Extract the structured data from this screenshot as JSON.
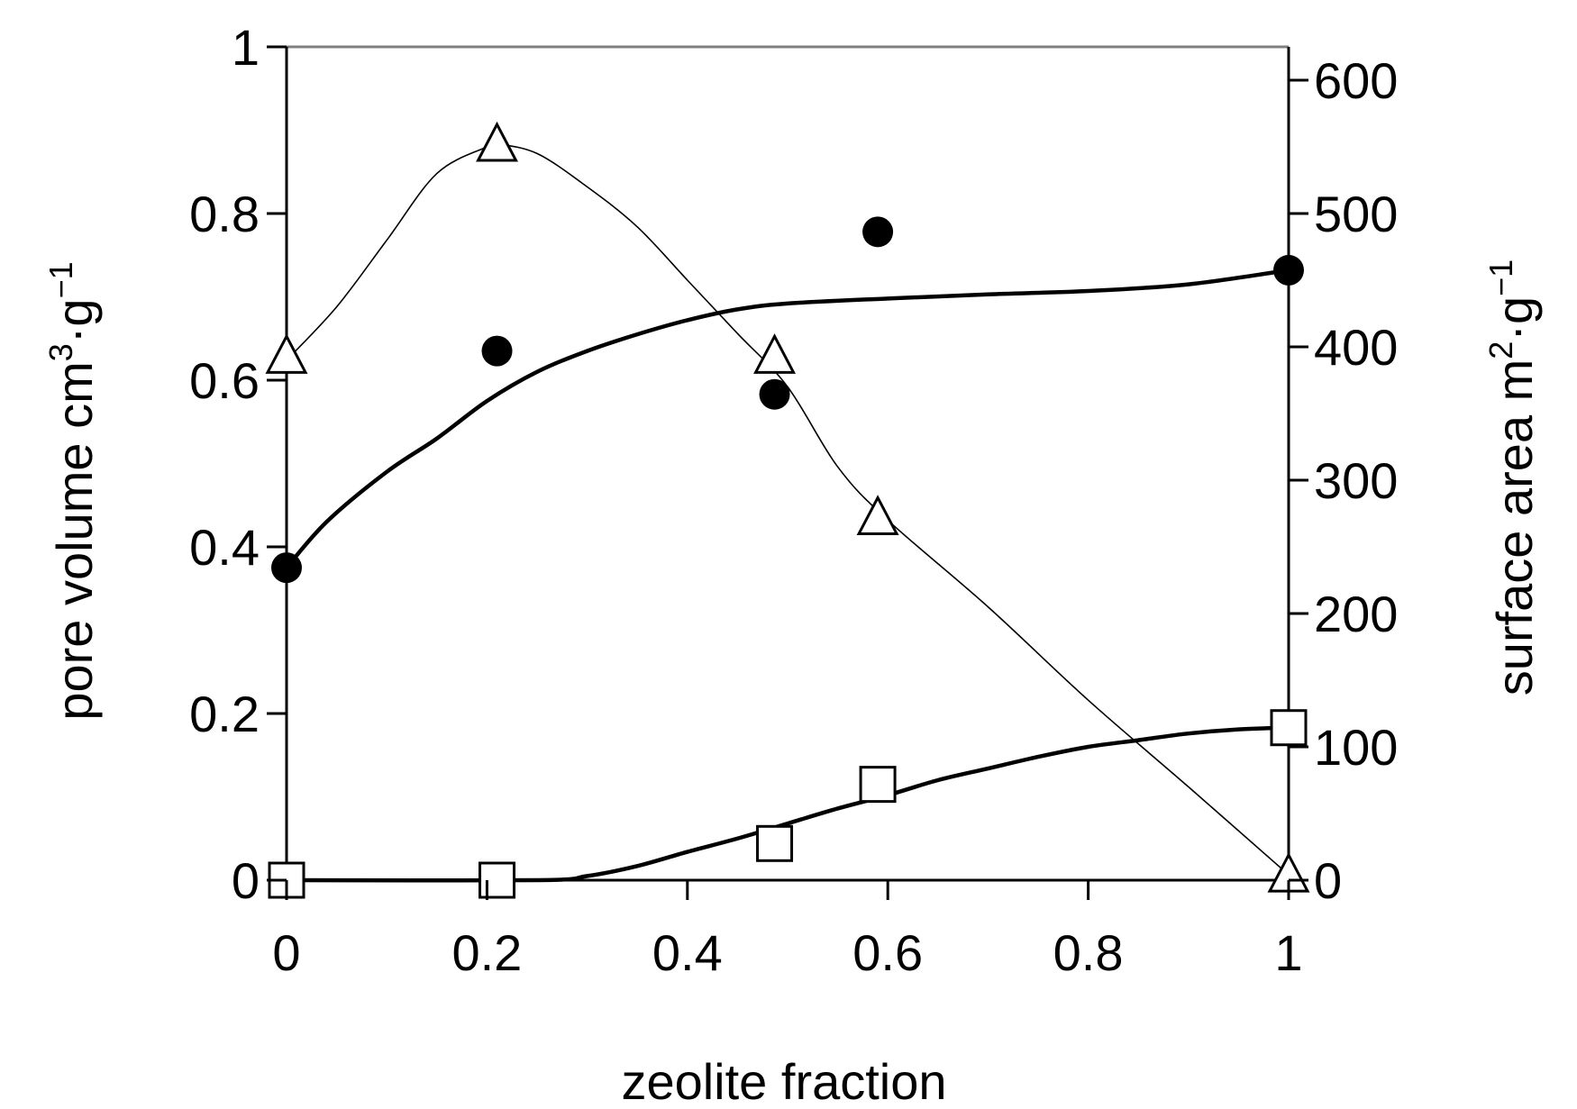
{
  "chart_data": {
    "type": "scatter",
    "xlabel": "zeolite fraction",
    "ylabel": {
      "text": "pore volume cm",
      "sup1": "3",
      "mid": "·g",
      "sup2": "−1"
    },
    "y2label": {
      "text": "surface area m",
      "sup1": "2",
      "mid": "·g",
      "sup2": "−1"
    },
    "xlim": [
      0,
      1
    ],
    "ylim": [
      0,
      1
    ],
    "y2lim": [
      0,
      625
    ],
    "xticks": [
      "0",
      "0.2",
      "0.4",
      "0.6",
      "0.8",
      "1"
    ],
    "yticks": [
      "0",
      "0.2",
      "0.4",
      "0.6",
      "0.8",
      "1"
    ],
    "y2ticks": [
      "0",
      "100",
      "200",
      "300",
      "400",
      "500",
      "600"
    ],
    "grid": false,
    "series": [
      {
        "marker": "filled-circle",
        "axis": "left",
        "points": [
          [
            0.0,
            0.375
          ],
          [
            0.21,
            0.635
          ],
          [
            0.487,
            0.583
          ],
          [
            0.59,
            0.778
          ],
          [
            1.0,
            0.732
          ]
        ],
        "fit": [
          [
            0.0,
            0.375
          ],
          [
            0.04,
            0.43
          ],
          [
            0.1,
            0.49
          ],
          [
            0.15,
            0.53
          ],
          [
            0.2,
            0.575
          ],
          [
            0.25,
            0.61
          ],
          [
            0.3,
            0.635
          ],
          [
            0.35,
            0.655
          ],
          [
            0.4,
            0.672
          ],
          [
            0.45,
            0.685
          ],
          [
            0.5,
            0.692
          ],
          [
            0.6,
            0.698
          ],
          [
            0.7,
            0.703
          ],
          [
            0.8,
            0.707
          ],
          [
            0.9,
            0.715
          ],
          [
            1.0,
            0.732
          ]
        ],
        "fit_weight": "bold"
      },
      {
        "marker": "open-square",
        "axis": "left",
        "points": [
          [
            0.0,
            0.0
          ],
          [
            0.21,
            0.0
          ],
          [
            0.487,
            0.044
          ],
          [
            0.59,
            0.115
          ],
          [
            1.0,
            0.183
          ]
        ],
        "fit": [
          [
            0.0,
            0.0
          ],
          [
            0.25,
            0.0
          ],
          [
            0.3,
            0.005
          ],
          [
            0.35,
            0.017
          ],
          [
            0.4,
            0.034
          ],
          [
            0.45,
            0.05
          ],
          [
            0.5,
            0.068
          ],
          [
            0.55,
            0.086
          ],
          [
            0.6,
            0.102
          ],
          [
            0.65,
            0.12
          ],
          [
            0.7,
            0.134
          ],
          [
            0.75,
            0.148
          ],
          [
            0.8,
            0.16
          ],
          [
            0.85,
            0.168
          ],
          [
            0.9,
            0.176
          ],
          [
            0.95,
            0.181
          ],
          [
            1.0,
            0.183
          ]
        ],
        "fit_weight": "bold"
      },
      {
        "marker": "open-triangle",
        "axis": "right",
        "points": [
          [
            0.0,
            393
          ],
          [
            0.21,
            552
          ],
          [
            0.487,
            393
          ],
          [
            0.59,
            272
          ],
          [
            1.0,
            4
          ]
        ],
        "fit": [
          [
            0.0,
            390
          ],
          [
            0.05,
            430
          ],
          [
            0.1,
            480
          ],
          [
            0.15,
            530
          ],
          [
            0.2,
            550
          ],
          [
            0.21,
            552
          ],
          [
            0.25,
            545
          ],
          [
            0.3,
            520
          ],
          [
            0.35,
            490
          ],
          [
            0.4,
            450
          ],
          [
            0.45,
            410
          ],
          [
            0.5,
            370
          ],
          [
            0.55,
            310
          ],
          [
            0.6,
            270
          ],
          [
            0.7,
            205
          ],
          [
            0.8,
            135
          ],
          [
            0.9,
            70
          ],
          [
            1.0,
            4
          ]
        ],
        "fit_weight": "thin"
      }
    ]
  }
}
